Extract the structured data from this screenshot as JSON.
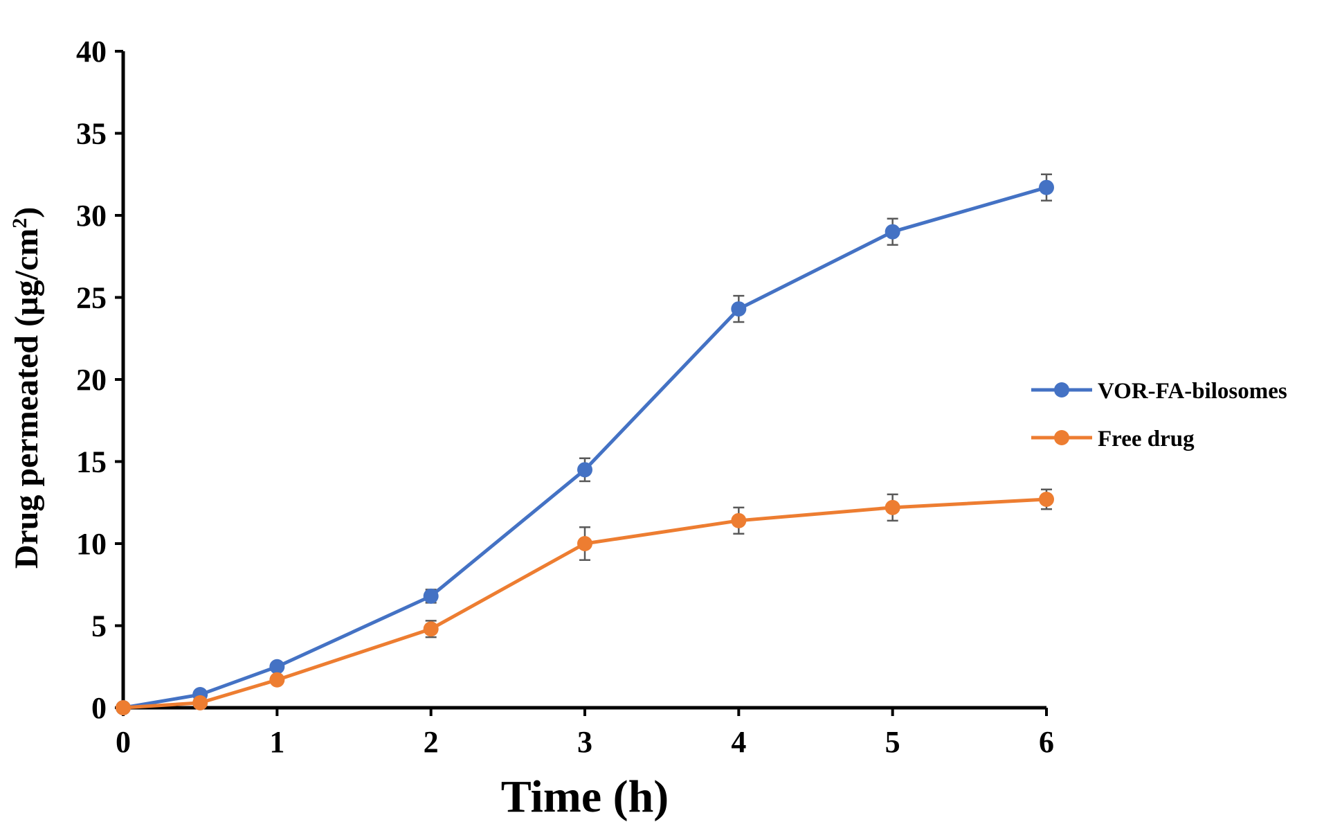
{
  "chart_data": {
    "type": "line",
    "title": "",
    "xlabel": "Time (h)",
    "ylabel_main": "Drug permeated (µg/cm",
    "ylabel_sup": "2",
    "ylabel_close": ")",
    "xlim": [
      0,
      6
    ],
    "ylim": [
      0,
      40
    ],
    "x_ticks": [
      0,
      1,
      2,
      3,
      4,
      5,
      6
    ],
    "y_ticks": [
      0,
      5,
      10,
      15,
      20,
      25,
      30,
      35,
      40
    ],
    "grid": false,
    "legend_position": "right",
    "x": [
      0,
      0.5,
      1,
      2,
      3,
      4,
      5,
      6
    ],
    "series": [
      {
        "name": "VOR-FA-bilosomes",
        "color": "#4472C4",
        "values": [
          0,
          0.8,
          2.5,
          6.8,
          14.5,
          24.3,
          29.0,
          31.7
        ],
        "error": [
          0,
          0,
          0.1,
          0.4,
          0.7,
          0.8,
          0.8,
          0.8
        ]
      },
      {
        "name": "Free drug",
        "color": "#ED7D31",
        "values": [
          0,
          0.3,
          1.7,
          4.8,
          10.0,
          11.4,
          12.2,
          12.7
        ],
        "error": [
          0,
          0,
          0,
          0.5,
          1.0,
          0.8,
          0.8,
          0.6
        ]
      }
    ]
  }
}
